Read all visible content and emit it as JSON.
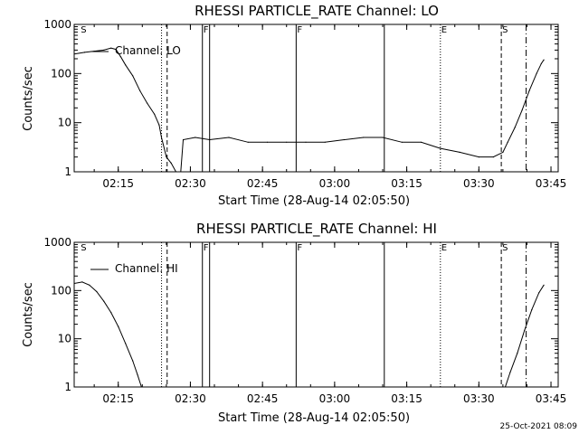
{
  "footer_timestamp": "25-Oct-2021 08:09",
  "time_ticks": [
    "02:15",
    "02:30",
    "02:45",
    "03:00",
    "03:15",
    "03:30",
    "03:45"
  ],
  "chart_data": [
    {
      "type": "line",
      "title": "RHESSI PARTICLE_RATE Channel: LO",
      "xlabel": "Start Time (28-Aug-14 02:05:50)",
      "ylabel": "Counts/sec",
      "yscale": "log",
      "ylim": [
        1,
        1000
      ],
      "xlim": [
        "02:05:50",
        "03:46:30"
      ],
      "y_ticks": [
        "1",
        "10",
        "100",
        "1000"
      ],
      "x_ticks": [
        "02:15",
        "02:30",
        "02:45",
        "03:00",
        "03:15",
        "03:30",
        "03:45"
      ],
      "legend": "Channel: LO",
      "legend_position": "top-left",
      "series": [
        {
          "name": "Channel: LO",
          "points": [
            [
              "02:05:50",
              250
            ],
            [
              "02:08:00",
              270
            ],
            [
              "02:10:00",
              285
            ],
            [
              "02:12:00",
              300
            ],
            [
              "02:13:30",
              330
            ],
            [
              "02:14:30",
              310
            ],
            [
              "02:15:30",
              220
            ],
            [
              "02:16:30",
              150
            ],
            [
              "02:18:00",
              90
            ],
            [
              "02:19:30",
              45
            ],
            [
              "02:21:00",
              25
            ],
            [
              "02:22:30",
              15
            ],
            [
              "02:23:30",
              9
            ],
            [
              "02:24:00",
              5
            ],
            [
              "02:25:00",
              2
            ],
            [
              "02:26:00",
              1.5
            ],
            [
              "02:27:00",
              1
            ],
            [
              "02:28:00",
              1
            ],
            [
              "02:28:30",
              4.5
            ],
            [
              "02:31:00",
              5
            ],
            [
              "02:34:00",
              4.5
            ],
            [
              "02:38:00",
              5
            ],
            [
              "02:42:00",
              4
            ],
            [
              "02:46:00",
              4
            ],
            [
              "02:50:00",
              4
            ],
            [
              "02:54:00",
              4
            ],
            [
              "02:58:00",
              4
            ],
            [
              "03:02:00",
              4.5
            ],
            [
              "03:06:00",
              5
            ],
            [
              "03:10:00",
              5
            ],
            [
              "03:14:00",
              4
            ],
            [
              "03:18:00",
              4
            ],
            [
              "03:22:00",
              3
            ],
            [
              "03:26:00",
              2.5
            ],
            [
              "03:30:00",
              2
            ],
            [
              "03:33:00",
              2
            ],
            [
              "03:35:00",
              2.5
            ],
            [
              "03:36:00",
              4
            ],
            [
              "03:37:30",
              8
            ],
            [
              "03:39:00",
              18
            ],
            [
              "03:40:30",
              45
            ],
            [
              "03:42:00",
              100
            ],
            [
              "03:43:00",
              160
            ],
            [
              "03:43:30",
              190
            ]
          ]
        }
      ],
      "markers": [
        {
          "time": "02:07:00",
          "label": "S",
          "style": "none"
        },
        {
          "time": "02:24:00",
          "label": "",
          "style": "dotted"
        },
        {
          "time": "02:25:10",
          "label": "",
          "style": "dashed"
        },
        {
          "time": "02:32:30",
          "label": "F",
          "style": "solid"
        },
        {
          "time": "02:34:00",
          "label": "",
          "style": "solid"
        },
        {
          "time": "02:52:00",
          "label": "F",
          "style": "solid"
        },
        {
          "time": "03:10:20",
          "label": "",
          "style": "solid"
        },
        {
          "time": "03:22:00",
          "label": "E",
          "style": "dotted"
        },
        {
          "time": "03:34:40",
          "label": "S",
          "style": "dashed"
        },
        {
          "time": "03:39:50",
          "label": "",
          "style": "dashdot"
        }
      ]
    },
    {
      "type": "line",
      "title": "RHESSI PARTICLE_RATE Channel: HI",
      "xlabel": "Start Time (28-Aug-14 02:05:50)",
      "ylabel": "Counts/sec",
      "yscale": "log",
      "ylim": [
        1,
        1000
      ],
      "xlim": [
        "02:05:50",
        "03:46:30"
      ],
      "y_ticks": [
        "1",
        "10",
        "100",
        "1000"
      ],
      "x_ticks": [
        "02:15",
        "02:30",
        "02:45",
        "03:00",
        "03:15",
        "03:30",
        "03:45"
      ],
      "legend": "Channel: HI",
      "legend_position": "top-left",
      "series": [
        {
          "name": "Channel: HI",
          "points": [
            [
              "02:05:50",
              140
            ],
            [
              "02:07:30",
              150
            ],
            [
              "02:09:00",
              130
            ],
            [
              "02:10:30",
              95
            ],
            [
              "02:12:00",
              60
            ],
            [
              "02:13:30",
              35
            ],
            [
              "02:15:00",
              18
            ],
            [
              "02:16:30",
              8
            ],
            [
              "02:18:00",
              3.5
            ],
            [
              "02:19:00",
              1.8
            ],
            [
              "02:19:50",
              1
            ],
            [
              "03:35:30",
              1
            ],
            [
              "03:36:30",
              2
            ],
            [
              "03:38:00",
              5
            ],
            [
              "03:39:30",
              15
            ],
            [
              "03:41:00",
              40
            ],
            [
              "03:42:30",
              90
            ],
            [
              "03:43:30",
              130
            ]
          ]
        }
      ],
      "markers": [
        {
          "time": "02:07:00",
          "label": "S",
          "style": "none"
        },
        {
          "time": "02:24:00",
          "label": "",
          "style": "dotted"
        },
        {
          "time": "02:25:10",
          "label": "",
          "style": "dashed"
        },
        {
          "time": "02:32:30",
          "label": "F",
          "style": "solid"
        },
        {
          "time": "02:34:00",
          "label": "",
          "style": "solid"
        },
        {
          "time": "02:52:00",
          "label": "F",
          "style": "solid"
        },
        {
          "time": "03:10:20",
          "label": "",
          "style": "solid"
        },
        {
          "time": "03:22:00",
          "label": "E",
          "style": "dotted"
        },
        {
          "time": "03:34:40",
          "label": "S",
          "style": "dashed"
        },
        {
          "time": "03:39:50",
          "label": "",
          "style": "dashdot"
        }
      ]
    }
  ]
}
